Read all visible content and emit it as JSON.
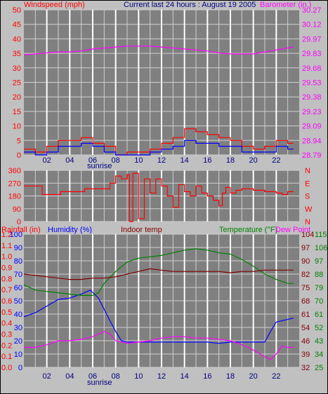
{
  "header": {
    "wind_label": "Windspeed (mph)",
    "title": "Current last 24 hours : August 19 2005",
    "baro_label": "Barometer (in.)"
  },
  "bottom_header": {
    "rain_label": "Rainfall (in)",
    "humidity_label": "Humidity (%)",
    "indoor_label": "Indoor temp",
    "temp_label": "Temperature (°F)",
    "dew_label": "Dew Point"
  },
  "x_ticks": [
    "02",
    "04",
    "06",
    "08",
    "10",
    "12",
    "14",
    "16",
    "18",
    "20",
    "22"
  ],
  "sunrise_label": "sunrise",
  "chart_data": [
    {
      "type": "line",
      "panel": "wind-barometer",
      "title": "Current last 24 hours : August 19 2005",
      "x_ticks": [
        "02",
        "04",
        "06",
        "08",
        "10",
        "12",
        "14",
        "16",
        "18",
        "20",
        "22"
      ],
      "left_axis": {
        "label": "Windspeed (mph)",
        "ticks": [
          0,
          5,
          10,
          15,
          20,
          25,
          30,
          35,
          40,
          45,
          50
        ],
        "range": [
          0,
          50
        ]
      },
      "right_axis": {
        "label": "Barometer (in.)",
        "ticks": [
          "28.79",
          "28.94",
          "29.09",
          "29.23",
          "29.38",
          "29.53",
          "29.68",
          "29.83",
          "29.97",
          "30.12",
          "30.27"
        ],
        "range": [
          28.79,
          30.27
        ]
      },
      "series": [
        {
          "name": "Barometer (in.)",
          "color": "#ff00ff",
          "axis": "right",
          "points": [
            [
              0,
              29.81
            ],
            [
              1,
              29.82
            ],
            [
              2,
              29.83
            ],
            [
              3,
              29.84
            ],
            [
              4,
              29.84
            ],
            [
              5,
              29.85
            ],
            [
              6,
              29.87
            ],
            [
              7,
              29.88
            ],
            [
              8,
              29.89
            ],
            [
              9,
              29.9
            ],
            [
              10,
              29.9
            ],
            [
              11,
              29.9
            ],
            [
              12,
              29.89
            ],
            [
              13,
              29.88
            ],
            [
              14,
              29.87
            ],
            [
              15,
              29.86
            ],
            [
              16,
              29.85
            ],
            [
              17,
              29.83
            ],
            [
              18,
              29.82
            ],
            [
              19,
              29.82
            ],
            [
              20,
              29.82
            ],
            [
              21,
              29.84
            ],
            [
              22,
              29.86
            ],
            [
              23,
              29.88
            ],
            [
              23.5,
              29.89
            ]
          ]
        },
        {
          "name": "Wind gust",
          "color": "#ff0000",
          "axis": "left",
          "points": [
            [
              0,
              2
            ],
            [
              1,
              1
            ],
            [
              2,
              3
            ],
            [
              3,
              5
            ],
            [
              4,
              5
            ],
            [
              5,
              6
            ],
            [
              6,
              4
            ],
            [
              7,
              3
            ],
            [
              8,
              0
            ],
            [
              9,
              1
            ],
            [
              10,
              1
            ],
            [
              11,
              2
            ],
            [
              12,
              4
            ],
            [
              13,
              6
            ],
            [
              14,
              9
            ],
            [
              15,
              8
            ],
            [
              16,
              7
            ],
            [
              17,
              6
            ],
            [
              18,
              5
            ],
            [
              19,
              3
            ],
            [
              20,
              2
            ],
            [
              21,
              3
            ],
            [
              22,
              5
            ],
            [
              23,
              4
            ],
            [
              23.5,
              4
            ]
          ]
        },
        {
          "name": "Wind speed",
          "color": "#0000ff",
          "axis": "left",
          "points": [
            [
              0,
              1
            ],
            [
              1,
              0
            ],
            [
              2,
              1
            ],
            [
              3,
              3
            ],
            [
              4,
              3
            ],
            [
              5,
              4
            ],
            [
              6,
              3
            ],
            [
              7,
              1
            ],
            [
              8,
              0
            ],
            [
              9,
              0
            ],
            [
              10,
              0
            ],
            [
              11,
              1
            ],
            [
              12,
              2
            ],
            [
              13,
              3
            ],
            [
              14,
              5
            ],
            [
              15,
              4
            ],
            [
              16,
              4
            ],
            [
              17,
              3
            ],
            [
              18,
              3
            ],
            [
              19,
              1
            ],
            [
              20,
              1
            ],
            [
              21,
              1
            ],
            [
              22,
              3
            ],
            [
              23,
              2
            ],
            [
              23.5,
              2
            ]
          ]
        }
      ]
    },
    {
      "type": "line",
      "panel": "wind-direction",
      "left_axis": {
        "ticks": [
          0,
          90,
          180,
          270,
          360
        ],
        "range": [
          0,
          360
        ]
      },
      "right_axis": {
        "ticks": [
          "N",
          "W",
          "S",
          "E",
          "N"
        ]
      },
      "series": [
        {
          "name": "Wind direction",
          "color": "#ff0000",
          "points": [
            [
              0,
              250
            ],
            [
              1.5,
              250
            ],
            [
              1.6,
              190
            ],
            [
              3,
              190
            ],
            [
              3.2,
              210
            ],
            [
              5,
              210
            ],
            [
              5.3,
              230
            ],
            [
              7,
              230
            ],
            [
              7.5,
              270
            ],
            [
              8,
              320
            ],
            [
              8.5,
              300
            ],
            [
              9,
              330
            ],
            [
              9.2,
              0
            ],
            [
              9.5,
              340
            ],
            [
              10,
              20
            ],
            [
              10.5,
              300
            ],
            [
              11,
              200
            ],
            [
              11.5,
              300
            ],
            [
              12,
              250
            ],
            [
              12.5,
              180
            ],
            [
              13,
              100
            ],
            [
              13.5,
              260
            ],
            [
              14,
              210
            ],
            [
              14.5,
              180
            ],
            [
              15,
              250
            ],
            [
              15.5,
              200
            ],
            [
              16,
              180
            ],
            [
              16.5,
              150
            ],
            [
              17,
              110
            ],
            [
              17.3,
              200
            ],
            [
              17.6,
              240
            ],
            [
              18,
              200
            ],
            [
              18.5,
              220
            ],
            [
              19,
              230
            ],
            [
              20,
              220
            ],
            [
              21,
              210
            ],
            [
              22,
              200
            ],
            [
              22.5,
              190
            ],
            [
              23,
              210
            ],
            [
              23.5,
              210
            ]
          ]
        }
      ]
    },
    {
      "type": "line",
      "panel": "temperature-humidity",
      "left_axis_rain": {
        "label": "Rainfall (in)",
        "ticks": [
          "0.0",
          "0.1",
          "0.2",
          "0.3",
          "0.4",
          "0.5",
          "0.6",
          "0.7",
          "0.8",
          "0.9",
          "1.0",
          "1.1",
          "1.2"
        ],
        "range": [
          0,
          1.2
        ]
      },
      "left_axis_humidity": {
        "label": "Humidity (%)",
        "ticks": [
          0,
          10,
          20,
          30,
          40,
          50,
          60,
          70,
          80,
          90,
          100
        ],
        "range": [
          0,
          100
        ]
      },
      "right_axis_temp_a": {
        "ticks": [
          32,
          39,
          46,
          54,
          61,
          68,
          75,
          82,
          90,
          97,
          104
        ]
      },
      "right_axis_temp_b": {
        "ticks": [
          25,
          34,
          43,
          52,
          61,
          70,
          79,
          88,
          97,
          106,
          115
        ]
      },
      "series": [
        {
          "name": "Humidity (%)",
          "color": "#0000ff",
          "axis": "humidity",
          "points": [
            [
              0,
              38
            ],
            [
              1,
              41
            ],
            [
              2,
              46
            ],
            [
              3,
              51
            ],
            [
              4,
              52
            ],
            [
              5,
              55
            ],
            [
              5.8,
              58
            ],
            [
              6.5,
              52
            ],
            [
              7.5,
              35
            ],
            [
              8,
              27
            ],
            [
              8.5,
              20
            ],
            [
              9,
              19
            ],
            [
              10,
              19
            ],
            [
              12,
              19
            ],
            [
              14,
              19
            ],
            [
              16,
              19
            ],
            [
              17,
              18
            ],
            [
              18,
              19
            ],
            [
              19,
              19
            ],
            [
              20,
              19
            ],
            [
              21,
              19
            ],
            [
              21.5,
              27
            ],
            [
              22,
              34
            ],
            [
              23,
              36
            ],
            [
              23.5,
              37
            ]
          ]
        },
        {
          "name": "Temperature (°F)",
          "color": "#008000",
          "axis": "humidity",
          "points": [
            [
              0,
              62
            ],
            [
              1,
              58
            ],
            [
              2,
              57
            ],
            [
              3,
              56
            ],
            [
              4,
              55
            ],
            [
              5,
              54
            ],
            [
              6,
              54
            ],
            [
              6.5,
              56
            ],
            [
              7,
              63
            ],
            [
              8,
              72
            ],
            [
              9,
              79
            ],
            [
              10,
              82
            ],
            [
              12,
              84
            ],
            [
              13,
              86
            ],
            [
              14,
              88
            ],
            [
              15,
              89
            ],
            [
              16,
              88
            ],
            [
              17,
              86
            ],
            [
              18,
              85
            ],
            [
              19,
              81
            ],
            [
              20,
              76
            ],
            [
              21,
              70
            ],
            [
              22,
              66
            ],
            [
              23,
              63
            ],
            [
              23.5,
              63
            ]
          ]
        },
        {
          "name": "Indoor temp",
          "color": "#800000",
          "axis": "humidity",
          "points": [
            [
              0,
              70
            ],
            [
              1,
              69
            ],
            [
              2,
              68
            ],
            [
              3,
              67
            ],
            [
              4,
              66
            ],
            [
              5,
              66
            ],
            [
              6,
              67
            ],
            [
              7,
              67
            ],
            [
              8,
              68
            ],
            [
              9,
              70
            ],
            [
              10,
              72
            ],
            [
              11,
              74
            ],
            [
              12,
              73
            ],
            [
              13,
              72
            ],
            [
              14,
              72
            ],
            [
              15,
              72
            ],
            [
              16,
              72
            ],
            [
              17,
              72
            ],
            [
              18,
              71
            ],
            [
              19,
              72
            ],
            [
              20,
              72
            ],
            [
              21,
              73
            ],
            [
              22,
              73
            ],
            [
              23,
              73
            ],
            [
              23.5,
              73
            ]
          ]
        },
        {
          "name": "Dew Point",
          "color": "#ff00ff",
          "axis": "humidity",
          "points": [
            [
              0,
              15
            ],
            [
              1,
              15
            ],
            [
              2,
              17
            ],
            [
              3,
              20
            ],
            [
              4,
              20
            ],
            [
              5,
              21
            ],
            [
              6,
              23
            ],
            [
              7,
              27
            ],
            [
              7.5,
              25
            ],
            [
              8,
              20
            ],
            [
              9,
              18
            ],
            [
              10,
              19
            ],
            [
              11,
              20
            ],
            [
              12,
              22
            ],
            [
              13,
              23
            ],
            [
              14,
              23
            ],
            [
              15,
              22
            ],
            [
              16,
              22
            ],
            [
              17,
              21
            ],
            [
              18,
              20
            ],
            [
              19,
              17
            ],
            [
              20,
              13
            ],
            [
              21,
              8
            ],
            [
              21.5,
              6
            ],
            [
              22,
              10
            ],
            [
              22.5,
              16
            ],
            [
              23,
              15
            ],
            [
              23.5,
              15
            ]
          ]
        }
      ]
    }
  ]
}
